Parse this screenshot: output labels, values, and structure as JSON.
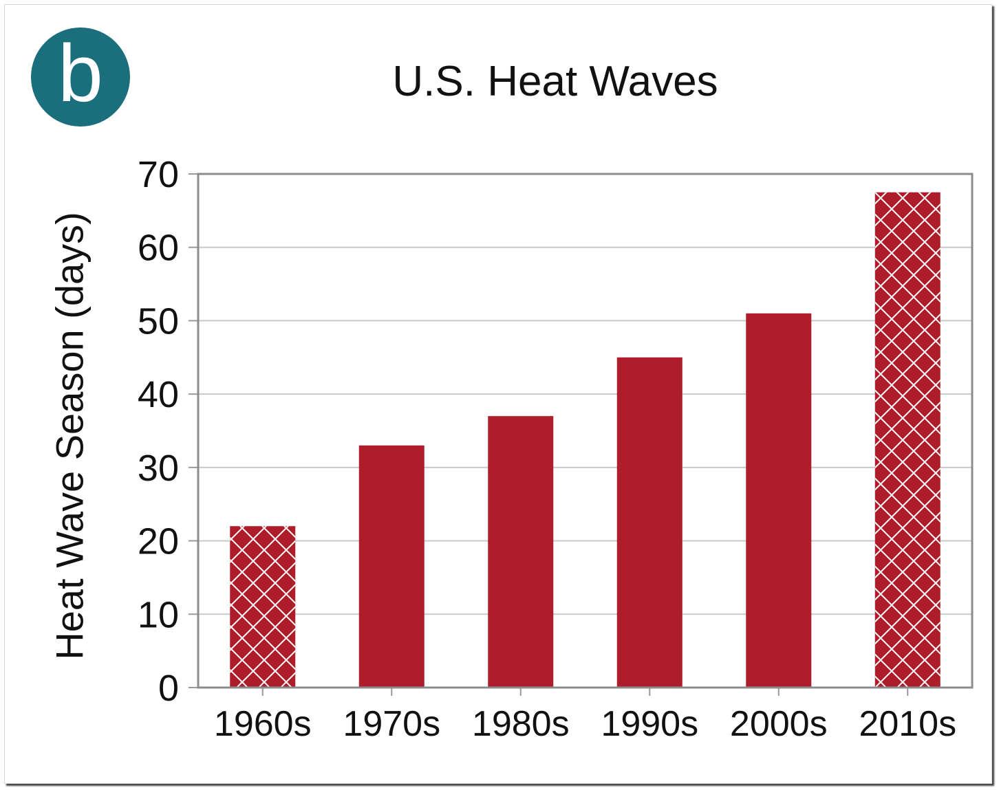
{
  "panel_label": "b",
  "colors": {
    "bar": "#ae1e2a",
    "badge": "#1b6f7d",
    "grid": "#c8c8c8",
    "hatch": "#ffffff"
  },
  "chart_data": {
    "type": "bar",
    "title": "U.S. Heat Waves",
    "xlabel": "",
    "ylabel": "Heat Wave Season (days)",
    "categories": [
      "1960s",
      "1970s",
      "1980s",
      "1990s",
      "2000s",
      "2010s"
    ],
    "values": [
      22,
      33,
      37,
      45,
      51,
      67.5
    ],
    "hatched": [
      true,
      false,
      false,
      false,
      false,
      true
    ],
    "ylim": [
      0,
      70
    ],
    "yticks": [
      0,
      10,
      20,
      30,
      40,
      50,
      60,
      70
    ],
    "grid": true,
    "legend": "none"
  }
}
